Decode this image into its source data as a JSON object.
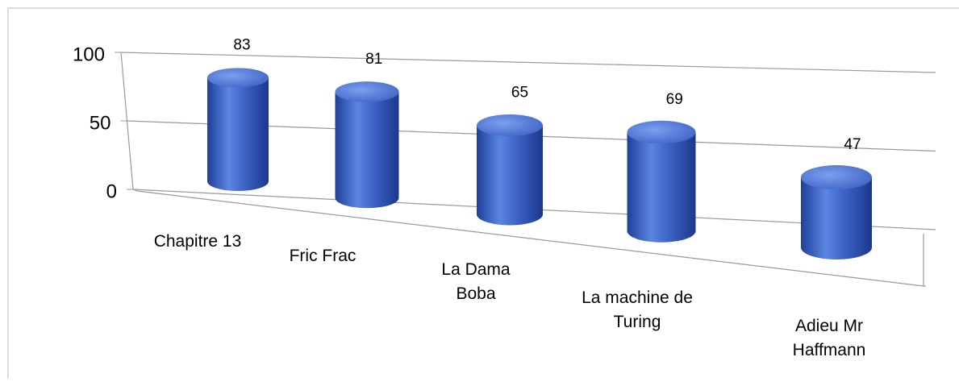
{
  "chart_data": {
    "type": "bar3d",
    "categories": [
      "Chapitre 13",
      "Fric Frac",
      "La Dama Boba",
      "La machine de Turing",
      "Adieu Mr Haffmann"
    ],
    "values": [
      83,
      81,
      65,
      69,
      47
    ],
    "color": "#3a5fc4",
    "ylim": [
      0,
      100
    ],
    "yticks": [
      0,
      50,
      100
    ],
    "grid": true
  }
}
